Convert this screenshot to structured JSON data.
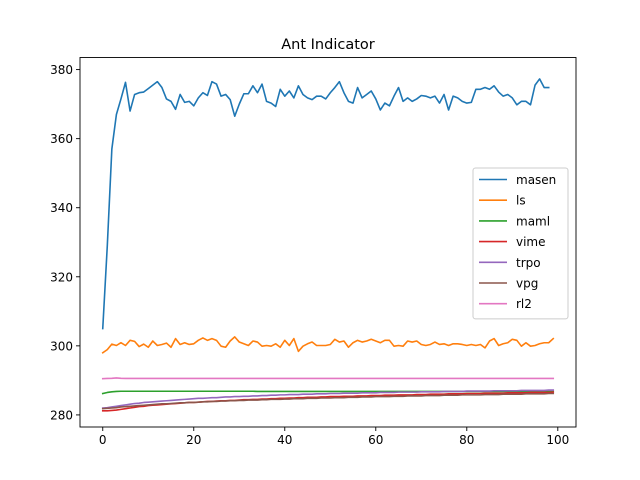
{
  "chart_data": {
    "type": "line",
    "title": "Ant Indicator",
    "xlabel": "",
    "ylabel": "",
    "xlim": [
      -5,
      104
    ],
    "ylim": [
      276.5,
      383.5
    ],
    "xticks": [
      0,
      20,
      40,
      60,
      80,
      100
    ],
    "yticks": [
      280,
      300,
      320,
      340,
      360,
      380
    ],
    "grid": false,
    "legend_position": "center-right",
    "series": [
      {
        "name": "masen",
        "color": "#1f77b4",
        "values": [
          305,
          329,
          357,
          367,
          371.5,
          376.3,
          368,
          372.8,
          373.3,
          373.5,
          374.5,
          375.5,
          376.5,
          374.8,
          371.5,
          370.8,
          368.5,
          372.8,
          370.5,
          370.8,
          369.5,
          371.8,
          373.3,
          372.5,
          376.5,
          375.8,
          372.3,
          372.8,
          371.3,
          366.5,
          370,
          373,
          373,
          375.3,
          373.3,
          375.8,
          370.8,
          370.3,
          369.3,
          374.3,
          372.3,
          373.8,
          371.8,
          375.3,
          372.8,
          371.8,
          371.3,
          372.3,
          372.3,
          371.5,
          373.3,
          374.8,
          376.5,
          373.3,
          370.8,
          370.3,
          374.8,
          371.8,
          372.8,
          373.8,
          371.5,
          368.3,
          370.3,
          369.5,
          372.3,
          374.8,
          370.8,
          371.8,
          370.8,
          371.5,
          372.5,
          372.3,
          371.8,
          372.3,
          370.3,
          372.8,
          368.3,
          372.3,
          371.8,
          370.8,
          370.3,
          370.5,
          374.3,
          374.3,
          374.8,
          374.3,
          375.3,
          373.5,
          372.3,
          372.8,
          371.8,
          369.8,
          370.8,
          370.8,
          369.8,
          375.5,
          377.3,
          374.8,
          374.8
        ]
      },
      {
        "name": "ls",
        "color": "#ff7f0e",
        "values": [
          298,
          298.9,
          300.5,
          300.1,
          300.9,
          300.1,
          301.6,
          301.3,
          299.8,
          300.5,
          299.6,
          301.4,
          300.1,
          300.4,
          300.8,
          299.6,
          302.1,
          300.4,
          300.9,
          300.4,
          300.6,
          301.6,
          302.3,
          301.6,
          302.1,
          301.6,
          299.9,
          299.6,
          301.4,
          302.6,
          301.1,
          300.6,
          300.1,
          301.4,
          301.1,
          299.9,
          300.1,
          299.9,
          300.6,
          299.6,
          301.6,
          300.1,
          302.1,
          298.4,
          299.9,
          300.6,
          301.1,
          300.1,
          300.1,
          300.1,
          300.4,
          301.9,
          301.1,
          301.4,
          299.6,
          300.9,
          301.6,
          301.1,
          301.4,
          301.9,
          301.4,
          300.9,
          301.6,
          301.6,
          299.9,
          300.1,
          299.9,
          301.4,
          301.1,
          301.4,
          300.4,
          300.1,
          300.4,
          301.1,
          300.4,
          300.6,
          300.1,
          300.6,
          300.6,
          300.4,
          300.1,
          300.4,
          300.1,
          300.4,
          299.4,
          301.4,
          302.1,
          300.1,
          300.6,
          300.9,
          301.9,
          301.6,
          299.9,
          300.9,
          299.9,
          300.1,
          300.6,
          300.9,
          300.9,
          302.1
        ]
      },
      {
        "name": "maml",
        "color": "#2ca02c",
        "values": [
          286.2,
          286.5,
          286.7,
          286.8,
          286.85,
          286.85,
          286.85,
          286.85,
          286.85,
          286.85,
          286.85,
          286.85,
          286.85,
          286.85,
          286.85,
          286.85,
          286.85,
          286.85,
          286.85,
          286.85,
          286.85,
          286.85,
          286.85,
          286.85,
          286.85,
          286.85,
          286.85,
          286.85,
          286.85,
          286.85,
          286.85,
          286.85,
          286.85,
          286.85,
          286.8,
          286.8,
          286.8,
          286.8,
          286.8,
          286.8,
          286.8,
          286.8,
          286.8,
          286.8,
          286.8,
          286.8,
          286.8,
          286.8,
          286.8,
          286.8,
          286.8,
          286.8,
          286.8,
          286.8,
          286.8,
          286.8,
          286.8,
          286.8,
          286.8,
          286.8,
          286.8,
          286.8,
          286.8,
          286.8,
          286.8,
          286.8,
          286.8,
          286.8,
          286.8,
          286.8,
          286.8,
          286.8,
          286.8,
          286.8,
          286.8,
          286.8,
          286.8,
          286.8,
          286.8,
          286.8,
          286.8,
          286.8,
          286.8,
          286.8,
          286.8,
          286.8,
          286.8,
          286.8,
          286.8,
          286.8,
          286.8,
          286.8,
          286.8,
          286.8,
          286.8,
          286.8,
          286.8,
          286.8,
          286.8,
          286.8
        ]
      },
      {
        "name": "vime",
        "color": "#d62728",
        "values": [
          281.2,
          281.2,
          281.3,
          281.4,
          281.6,
          281.8,
          282,
          282.2,
          282.4,
          282.5,
          282.7,
          282.8,
          282.9,
          283,
          283.1,
          283.2,
          283.3,
          283.4,
          283.5,
          283.6,
          283.6,
          283.7,
          283.8,
          283.9,
          283.9,
          284,
          284.1,
          284.1,
          284.2,
          284.2,
          284.3,
          284.4,
          284.4,
          284.5,
          284.5,
          284.6,
          284.6,
          284.7,
          284.7,
          284.8,
          284.8,
          284.9,
          284.9,
          285,
          285,
          285.1,
          285.1,
          285.1,
          285.2,
          285.2,
          285.3,
          285.3,
          285.3,
          285.4,
          285.4,
          285.4,
          285.5,
          285.5,
          285.5,
          285.6,
          285.6,
          285.6,
          285.7,
          285.7,
          285.7,
          285.8,
          285.8,
          285.8,
          285.8,
          285.9,
          285.9,
          285.9,
          286,
          286,
          286,
          286,
          286.1,
          286.1,
          286.1,
          286.1,
          286.2,
          286.2,
          286.2,
          286.2,
          286.3,
          286.3,
          286.3,
          286.3,
          286.3,
          286.4,
          286.4,
          286.4,
          286.4,
          286.4,
          286.5,
          286.5,
          286.5,
          286.5,
          286.5,
          286.6
        ]
      },
      {
        "name": "trpo",
        "color": "#9467bd",
        "values": [
          282,
          282.1,
          282.3,
          282.5,
          282.7,
          282.9,
          283.1,
          283.3,
          283.4,
          283.6,
          283.7,
          283.8,
          283.9,
          284,
          284.1,
          284.2,
          284.3,
          284.4,
          284.5,
          284.6,
          284.7,
          284.8,
          284.8,
          284.9,
          285,
          285,
          285.1,
          285.2,
          285.2,
          285.3,
          285.3,
          285.4,
          285.4,
          285.5,
          285.5,
          285.6,
          285.6,
          285.7,
          285.7,
          285.8,
          285.8,
          285.9,
          285.9,
          285.9,
          286,
          286,
          286,
          286.1,
          286.1,
          286.1,
          286.2,
          286.2,
          286.2,
          286.3,
          286.3,
          286.3,
          286.3,
          286.4,
          286.4,
          286.4,
          286.4,
          286.5,
          286.5,
          286.5,
          286.5,
          286.6,
          286.6,
          286.6,
          286.6,
          286.6,
          286.7,
          286.7,
          286.7,
          286.7,
          286.7,
          286.8,
          286.8,
          286.8,
          286.8,
          286.8,
          286.9,
          286.9,
          286.9,
          286.9,
          286.9,
          286.9,
          287,
          287,
          287,
          287,
          287,
          287,
          287.1,
          287.1,
          287.1,
          287.1,
          287.1,
          287.1,
          287.2,
          287.2
        ]
      },
      {
        "name": "vpg",
        "color": "#8c564b",
        "values": [
          281.8,
          281.9,
          282,
          282.1,
          282.3,
          282.4,
          282.5,
          282.6,
          282.7,
          282.8,
          282.9,
          283,
          283.1,
          283.2,
          283.2,
          283.3,
          283.4,
          283.5,
          283.5,
          283.6,
          283.6,
          283.7,
          283.8,
          283.8,
          283.9,
          283.9,
          284,
          284,
          284.1,
          284.1,
          284.2,
          284.2,
          284.3,
          284.3,
          284.3,
          284.4,
          284.4,
          284.5,
          284.5,
          284.5,
          284.6,
          284.6,
          284.7,
          284.7,
          284.7,
          284.8,
          284.8,
          284.8,
          284.9,
          284.9,
          284.9,
          285,
          285,
          285,
          285.1,
          285.1,
          285.1,
          285.2,
          285.2,
          285.2,
          285.3,
          285.3,
          285.3,
          285.3,
          285.4,
          285.4,
          285.4,
          285.5,
          285.5,
          285.5,
          285.5,
          285.6,
          285.6,
          285.6,
          285.6,
          285.7,
          285.7,
          285.7,
          285.7,
          285.8,
          285.8,
          285.8,
          285.8,
          285.8,
          285.9,
          285.9,
          285.9,
          285.9,
          286,
          286,
          286,
          286,
          286,
          286.1,
          286.1,
          286.1,
          286.1,
          286.1,
          286.2,
          286.2
        ]
      },
      {
        "name": "rl2",
        "color": "#e377c2",
        "values": [
          290.5,
          290.55,
          290.6,
          290.7,
          290.6,
          290.55,
          290.55,
          290.55,
          290.55,
          290.55,
          290.55,
          290.55,
          290.55,
          290.55,
          290.55,
          290.55,
          290.55,
          290.55,
          290.55,
          290.55,
          290.55,
          290.55,
          290.55,
          290.55,
          290.55,
          290.55,
          290.55,
          290.55,
          290.55,
          290.55,
          290.55,
          290.55,
          290.55,
          290.55,
          290.55,
          290.55,
          290.55,
          290.55,
          290.55,
          290.55,
          290.55,
          290.55,
          290.55,
          290.55,
          290.55,
          290.55,
          290.55,
          290.55,
          290.55,
          290.55,
          290.55,
          290.55,
          290.55,
          290.55,
          290.55,
          290.55,
          290.55,
          290.55,
          290.55,
          290.55,
          290.55,
          290.55,
          290.55,
          290.55,
          290.55,
          290.55,
          290.55,
          290.55,
          290.55,
          290.55,
          290.55,
          290.55,
          290.55,
          290.55,
          290.55,
          290.55,
          290.55,
          290.55,
          290.55,
          290.55,
          290.55,
          290.55,
          290.55,
          290.55,
          290.55,
          290.55,
          290.55,
          290.55,
          290.55,
          290.55,
          290.55,
          290.55,
          290.55,
          290.55,
          290.55,
          290.55,
          290.55,
          290.55,
          290.55,
          290.55
        ]
      }
    ]
  }
}
